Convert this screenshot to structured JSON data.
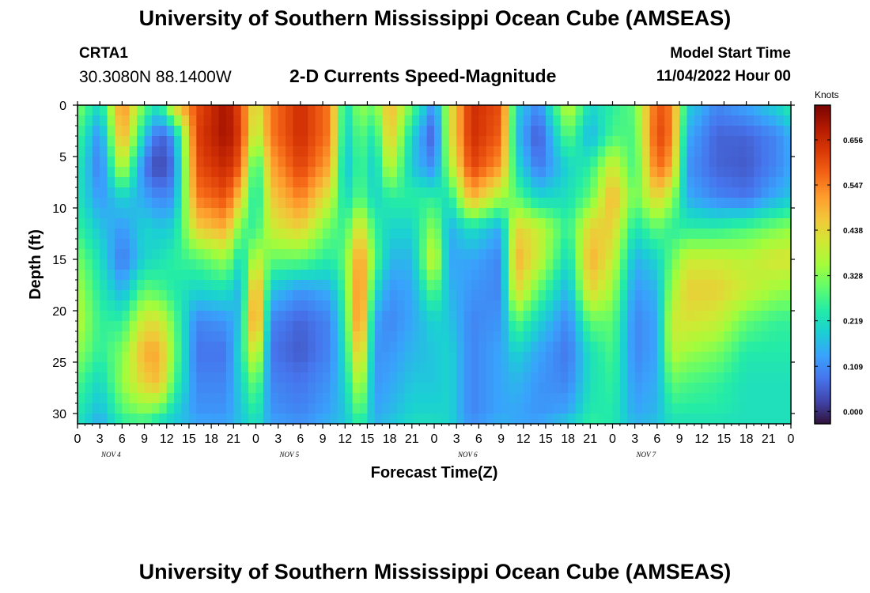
{
  "header": {
    "title": "University of Southern Mississippi Ocean Cube (AMSEAS)",
    "station_id": "CRTA1",
    "station_coords": "30.3080N  88.1400W",
    "chart_title": "2-D Currents Speed-Magnitude",
    "model_start_label": "Model Start Time",
    "model_start_value": "11/04/2022 Hour 00"
  },
  "footer": {
    "title": "University of Southern Mississippi Ocean Cube (AMSEAS)"
  },
  "chart_data": {
    "type": "heatmap",
    "xlabel": "Forecast Time(Z)",
    "ylabel": "Depth (ft)",
    "x_tick_labels": [
      "0",
      "3",
      "6",
      "9",
      "12",
      "15",
      "18",
      "21",
      "0",
      "3",
      "6",
      "9",
      "12",
      "15",
      "18",
      "21",
      "0",
      "3",
      "6",
      "9",
      "12",
      "15",
      "18",
      "21",
      "0",
      "3",
      "6",
      "9",
      "12",
      "15",
      "18",
      "21",
      "0"
    ],
    "day_labels": [
      "NOV 4",
      "NOV 5",
      "NOV 6",
      "NOV 7"
    ],
    "xlim_hours": [
      0,
      96
    ],
    "y_tick_labels": [
      "0",
      "5",
      "10",
      "15",
      "20",
      "25",
      "30"
    ],
    "ylim_ft": [
      0,
      31
    ],
    "colorbar": {
      "unit": "Knots",
      "tick_labels": [
        "0.656",
        "0.547",
        "0.438",
        "0.328",
        "0.219",
        "0.109",
        "0.000"
      ],
      "tick_values": [
        0.656,
        0.547,
        0.438,
        0.328,
        0.219,
        0.109,
        0.0
      ],
      "range": [
        -0.03,
        0.74
      ],
      "colormap": [
        "#30123b",
        "#4145ab",
        "#4675ed",
        "#39a2fc",
        "#1bcfd4",
        "#24eca6",
        "#61fc6c",
        "#a4fc3b",
        "#d1e834",
        "#f3c63a",
        "#fe9b2d",
        "#f36315",
        "#d93806",
        "#b11901",
        "#7a0403"
      ]
    },
    "profiles": [
      {
        "hour": 0,
        "v": [
          0.33,
          0.28,
          0.24,
          0.23,
          0.26,
          0.32,
          0.36,
          0.38,
          0.34,
          0.28,
          0.24,
          0.22
        ]
      },
      {
        "hour": 3,
        "v": [
          0.2,
          0.1,
          0.08,
          0.12,
          0.18,
          0.22,
          0.24,
          0.26,
          0.25,
          0.2,
          0.16,
          0.14
        ]
      },
      {
        "hour": 6,
        "v": [
          0.55,
          0.52,
          0.4,
          0.2,
          0.12,
          0.08,
          0.15,
          0.25,
          0.32,
          0.34,
          0.28,
          0.24
        ]
      },
      {
        "hour": 9,
        "v": [
          0.3,
          0.18,
          0.08,
          0.14,
          0.2,
          0.2,
          0.3,
          0.42,
          0.5,
          0.45,
          0.32,
          0.25
        ]
      },
      {
        "hour": 11,
        "v": [
          0.22,
          0.05,
          0.02,
          0.1,
          0.18,
          0.22,
          0.28,
          0.42,
          0.5,
          0.48,
          0.28,
          0.2
        ]
      },
      {
        "hour": 13,
        "v": [
          0.45,
          0.12,
          0.08,
          0.12,
          0.2,
          0.25,
          0.24,
          0.3,
          0.32,
          0.28,
          0.2,
          0.18
        ]
      },
      {
        "hour": 16,
        "v": [
          0.6,
          0.62,
          0.6,
          0.55,
          0.45,
          0.28,
          0.2,
          0.1,
          0.08,
          0.1,
          0.12,
          0.15
        ]
      },
      {
        "hour": 20,
        "v": [
          0.7,
          0.7,
          0.66,
          0.6,
          0.5,
          0.35,
          0.22,
          0.12,
          0.08,
          0.1,
          0.12,
          0.14
        ]
      },
      {
        "hour": 22,
        "v": [
          0.6,
          0.62,
          0.58,
          0.45,
          0.3,
          0.2,
          0.15,
          0.18,
          0.22,
          0.2,
          0.18,
          0.18
        ]
      },
      {
        "hour": 24,
        "v": [
          0.4,
          0.35,
          0.22,
          0.2,
          0.25,
          0.4,
          0.55,
          0.58,
          0.45,
          0.32,
          0.25,
          0.22
        ]
      },
      {
        "hour": 26,
        "v": [
          0.55,
          0.55,
          0.5,
          0.45,
          0.4,
          0.3,
          0.18,
          0.1,
          0.08,
          0.1,
          0.12,
          0.14
        ]
      },
      {
        "hour": 30,
        "v": [
          0.65,
          0.65,
          0.62,
          0.55,
          0.45,
          0.3,
          0.12,
          0.06,
          0.05,
          0.08,
          0.1,
          0.12
        ]
      },
      {
        "hour": 34,
        "v": [
          0.55,
          0.55,
          0.5,
          0.4,
          0.3,
          0.24,
          0.15,
          0.1,
          0.1,
          0.12,
          0.14,
          0.16
        ]
      },
      {
        "hour": 36,
        "v": [
          0.2,
          0.18,
          0.16,
          0.2,
          0.26,
          0.3,
          0.28,
          0.25,
          0.22,
          0.2,
          0.18,
          0.18
        ]
      },
      {
        "hour": 38,
        "v": [
          0.35,
          0.3,
          0.28,
          0.3,
          0.45,
          0.55,
          0.58,
          0.58,
          0.5,
          0.4,
          0.3,
          0.25
        ]
      },
      {
        "hour": 40,
        "v": [
          0.3,
          0.22,
          0.18,
          0.2,
          0.26,
          0.3,
          0.22,
          0.14,
          0.12,
          0.12,
          0.14,
          0.16
        ]
      },
      {
        "hour": 42,
        "v": [
          0.5,
          0.48,
          0.4,
          0.25,
          0.2,
          0.16,
          0.12,
          0.1,
          0.12,
          0.14,
          0.16,
          0.18
        ]
      },
      {
        "hour": 45,
        "v": [
          0.3,
          0.2,
          0.18,
          0.25,
          0.2,
          0.16,
          0.14,
          0.14,
          0.16,
          0.18,
          0.2,
          0.22
        ]
      },
      {
        "hour": 48,
        "v": [
          0.1,
          0.04,
          0.1,
          0.25,
          0.35,
          0.42,
          0.3,
          0.2,
          0.18,
          0.18,
          0.2,
          0.22
        ]
      },
      {
        "hour": 50,
        "v": [
          0.4,
          0.4,
          0.35,
          0.22,
          0.15,
          0.14,
          0.16,
          0.18,
          0.2,
          0.2,
          0.2,
          0.2
        ]
      },
      {
        "hour": 53,
        "v": [
          0.65,
          0.65,
          0.62,
          0.5,
          0.22,
          0.14,
          0.12,
          0.1,
          0.1,
          0.1,
          0.1,
          0.12
        ]
      },
      {
        "hour": 57,
        "v": [
          0.6,
          0.58,
          0.52,
          0.35,
          0.14,
          0.1,
          0.1,
          0.12,
          0.14,
          0.14,
          0.14,
          0.16
        ]
      },
      {
        "hour": 59,
        "v": [
          0.2,
          0.18,
          0.22,
          0.3,
          0.45,
          0.5,
          0.45,
          0.3,
          0.2,
          0.16,
          0.14,
          0.14
        ]
      },
      {
        "hour": 62,
        "v": [
          0.1,
          0.04,
          0.08,
          0.2,
          0.4,
          0.4,
          0.3,
          0.2,
          0.14,
          0.12,
          0.12,
          0.14
        ]
      },
      {
        "hour": 66,
        "v": [
          0.4,
          0.3,
          0.2,
          0.22,
          0.25,
          0.2,
          0.15,
          0.1,
          0.08,
          0.1,
          0.14,
          0.2
        ]
      },
      {
        "hour": 69,
        "v": [
          0.2,
          0.15,
          0.25,
          0.3,
          0.45,
          0.5,
          0.45,
          0.3,
          0.22,
          0.22,
          0.24,
          0.26
        ]
      },
      {
        "hour": 72,
        "v": [
          0.25,
          0.28,
          0.42,
          0.5,
          0.45,
          0.4,
          0.35,
          0.3,
          0.28,
          0.26,
          0.24,
          0.24
        ]
      },
      {
        "hour": 75,
        "v": [
          0.3,
          0.28,
          0.26,
          0.3,
          0.22,
          0.15,
          0.12,
          0.1,
          0.1,
          0.12,
          0.14,
          0.16
        ]
      },
      {
        "hour": 78,
        "v": [
          0.6,
          0.62,
          0.58,
          0.45,
          0.3,
          0.2,
          0.16,
          0.14,
          0.14,
          0.15,
          0.16,
          0.18
        ]
      },
      {
        "hour": 80,
        "v": [
          0.55,
          0.55,
          0.5,
          0.35,
          0.25,
          0.3,
          0.35,
          0.4,
          0.38,
          0.3,
          0.24,
          0.22
        ]
      },
      {
        "hour": 82,
        "v": [
          0.2,
          0.15,
          0.12,
          0.15,
          0.25,
          0.4,
          0.45,
          0.42,
          0.35,
          0.28,
          0.24,
          0.22
        ]
      },
      {
        "hour": 86,
        "v": [
          0.1,
          0.06,
          0.06,
          0.1,
          0.25,
          0.4,
          0.45,
          0.4,
          0.32,
          0.26,
          0.24,
          0.22
        ]
      },
      {
        "hour": 90,
        "v": [
          0.14,
          0.06,
          0.05,
          0.08,
          0.28,
          0.38,
          0.4,
          0.3,
          0.24,
          0.22,
          0.22,
          0.22
        ]
      },
      {
        "hour": 94,
        "v": [
          0.2,
          0.1,
          0.1,
          0.15,
          0.32,
          0.42,
          0.35,
          0.26,
          0.24,
          0.22,
          0.22,
          0.22
        ]
      },
      {
        "hour": 96,
        "v": [
          0.25,
          0.15,
          0.14,
          0.18,
          0.34,
          0.42,
          0.34,
          0.26,
          0.24,
          0.22,
          0.22,
          0.22
        ]
      }
    ],
    "profile_depths_ft": [
      0,
      3,
      6,
      9,
      12,
      15,
      18,
      21,
      24,
      27,
      30,
      31
    ]
  }
}
